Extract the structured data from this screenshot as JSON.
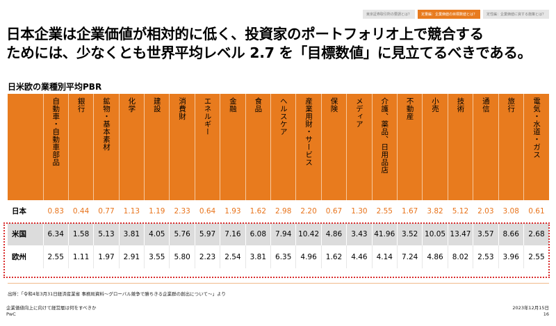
{
  "top_tabs": [
    {
      "label": "東京証券取引所の要請とは？",
      "active": false
    },
    {
      "label": "定量編：企業価値の目標数値とは？",
      "active": true
    },
    {
      "label": "定性編：企業価値に資する施策とは？",
      "active": false
    }
  ],
  "headline": {
    "line1": "日本企業は企業価値が相対的に低く、投資家のポートフォリオ上で競合する",
    "line2": "ためには、少なくとも世界平均レベル 2.7 を「目標数値」に見立てるべきである。"
  },
  "table": {
    "title": "日米欧の業種別平均PBR",
    "columns": [
      "自動車・自動車部品",
      "銀行",
      "鉱物・基本素材",
      "化学",
      "建設",
      "消費財",
      "エネルギー",
      "金融",
      "食品",
      "ヘルスケア",
      "産業用財・サービス",
      "保険",
      "メディア",
      "介護、薬品、日用品店",
      "不動産",
      "小売",
      "技術",
      "通信",
      "旅行",
      "電気・水道・ガス"
    ],
    "rows": [
      {
        "label": "日本",
        "values": [
          "0.83",
          "0.44",
          "0.77",
          "1.13",
          "1.19",
          "2.33",
          "0.64",
          "1.93",
          "1.62",
          "2.98",
          "2.20",
          "0.67",
          "1.30",
          "2.55",
          "1.67",
          "3.82",
          "5.12",
          "2.03",
          "3.08",
          "0.61"
        ]
      },
      {
        "label": "米国",
        "values": [
          "6.34",
          "1.58",
          "5.13",
          "3.81",
          "4.05",
          "5.76",
          "5.97",
          "7.16",
          "6.08",
          "7.94",
          "10.42",
          "4.86",
          "3.43",
          "41.96",
          "3.52",
          "10.05",
          "13.47",
          "3.57",
          "8.66",
          "2.68"
        ]
      },
      {
        "label": "欧州",
        "values": [
          "2.55",
          "1.11",
          "1.97",
          "2.91",
          "3.55",
          "5.80",
          "2.23",
          "2.54",
          "3.81",
          "6.35",
          "4.96",
          "1.62",
          "4.46",
          "4.14",
          "7.24",
          "4.86",
          "8.02",
          "2.53",
          "3.96",
          "2.55"
        ]
      }
    ]
  },
  "source": "出所：「令和4年3月31日経済産業省 事務局資料～グローバル競争で勝ちきる企業群の創出について～」より",
  "footer": {
    "doc_title": "企業価値向上に向けて経営層は何をすべきか",
    "brand": "PwC",
    "date": "2023年12月15日",
    "page": "16"
  },
  "colors": {
    "accent": "#e87b1e",
    "japan_text": "#e8731a",
    "highlight_border": "#d92b2b",
    "us_row_bg": "#dcdcdc"
  }
}
